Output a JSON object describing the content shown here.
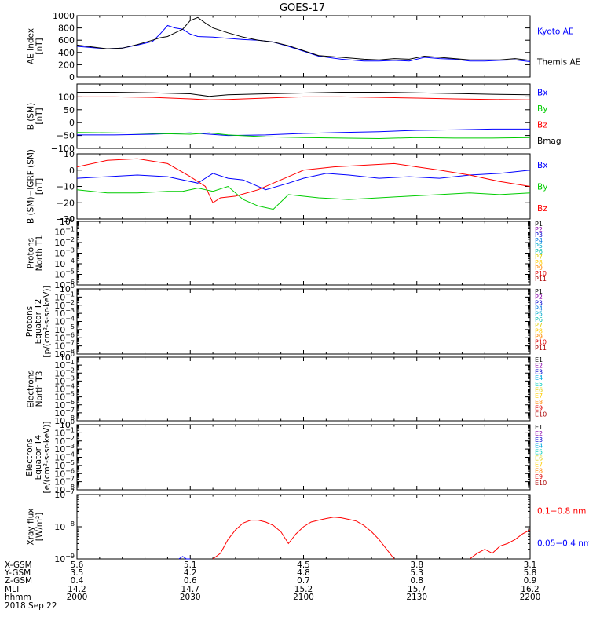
{
  "title": "GOES-17",
  "colors": {
    "black": "#000000",
    "blue": "#0000ff",
    "green": "#00cc00",
    "red": "#ff0000"
  },
  "chart_data": [
    {
      "type": "line",
      "ylabel": [
        "AE Index",
        "[nT]"
      ],
      "ylim": [
        0,
        1000
      ],
      "yticks": [
        0,
        200,
        400,
        600,
        800,
        1000
      ],
      "ytick_labels": [
        "0",
        "200",
        "400",
        "600",
        "800",
        "1000"
      ],
      "series": [
        {
          "name": "Kyoto AE",
          "color": "#0000ff",
          "x": [
            0,
            4,
            8,
            12,
            16,
            20,
            22,
            24,
            26,
            28,
            30,
            32,
            36,
            40,
            44,
            48,
            52,
            56,
            60,
            64,
            70,
            76,
            80,
            84,
            88,
            92,
            96,
            100,
            104,
            108,
            112,
            116,
            120
          ],
          "y": [
            500,
            480,
            460,
            470,
            520,
            580,
            700,
            840,
            800,
            780,
            700,
            660,
            650,
            630,
            610,
            600,
            570,
            500,
            420,
            340,
            290,
            260,
            260,
            270,
            260,
            320,
            300,
            290,
            260,
            260,
            270,
            280,
            250
          ]
        },
        {
          "name": "Themis AE",
          "color": "#000000",
          "x": [
            0,
            4,
            8,
            12,
            16,
            20,
            22,
            24,
            26,
            28,
            30,
            32,
            34,
            36,
            40,
            44,
            48,
            52,
            56,
            60,
            64,
            70,
            76,
            80,
            84,
            88,
            92,
            96,
            100,
            104,
            108,
            112,
            116,
            120
          ],
          "y": [
            520,
            490,
            460,
            470,
            530,
            600,
            640,
            660,
            720,
            780,
            920,
            970,
            880,
            800,
            720,
            650,
            600,
            570,
            510,
            430,
            350,
            320,
            290,
            280,
            300,
            290,
            340,
            320,
            300,
            280,
            280,
            280,
            300,
            270
          ]
        }
      ],
      "legend": [
        "Kyoto AE",
        "Themis AE"
      ]
    },
    {
      "type": "line",
      "ylabel": [
        "B (SM)",
        "[nT]"
      ],
      "ylim": [
        -100,
        150
      ],
      "yticks": [
        -100,
        -50,
        0,
        50,
        100
      ],
      "ytick_labels": [
        "−100",
        "−50",
        "0",
        "50",
        "100"
      ],
      "series": [
        {
          "name": "Bx",
          "color": "#0000ff",
          "x": [
            0,
            10,
            20,
            30,
            40,
            50,
            60,
            70,
            80,
            90,
            100,
            110,
            120
          ],
          "y": [
            -48,
            -48,
            -45,
            -40,
            -50,
            -48,
            -42,
            -38,
            -35,
            -30,
            -28,
            -25,
            -25
          ]
        },
        {
          "name": "By",
          "color": "#00cc00",
          "x": [
            0,
            10,
            20,
            30,
            35,
            40,
            50,
            60,
            70,
            80,
            90,
            100,
            110,
            120
          ],
          "y": [
            -38,
            -40,
            -42,
            -45,
            -40,
            -48,
            -55,
            -58,
            -60,
            -62,
            -58,
            -60,
            -60,
            -58
          ]
        },
        {
          "name": "Bz",
          "color": "#ff0000",
          "x": [
            0,
            10,
            20,
            30,
            35,
            40,
            50,
            60,
            70,
            80,
            90,
            100,
            110,
            120
          ],
          "y": [
            100,
            100,
            98,
            92,
            88,
            90,
            95,
            100,
            100,
            98,
            95,
            92,
            90,
            88
          ]
        },
        {
          "name": "Bmag",
          "color": "#000000",
          "x": [
            0,
            10,
            20,
            30,
            35,
            40,
            50,
            60,
            70,
            80,
            90,
            100,
            110,
            120
          ],
          "y": [
            118,
            118,
            116,
            112,
            102,
            108,
            112,
            115,
            118,
            118,
            116,
            113,
            110,
            108
          ]
        }
      ],
      "legend": [
        "Bx",
        "By",
        "Bz",
        "Bmag"
      ]
    },
    {
      "type": "line",
      "ylabel": [
        "B (SM)−IGRF (SM)",
        "[nT]"
      ],
      "ylim": [
        -30,
        10
      ],
      "yticks": [
        -30,
        -20,
        -10,
        0,
        10
      ],
      "ytick_labels": [
        "−30",
        "−20",
        "−10",
        "0",
        "10"
      ],
      "series": [
        {
          "name": "Bx",
          "color": "#0000ff",
          "x": [
            0,
            8,
            16,
            24,
            32,
            36,
            40,
            44,
            50,
            56,
            60,
            66,
            72,
            80,
            88,
            96,
            104,
            112,
            120
          ],
          "y": [
            -5,
            -4,
            -3,
            -4,
            -8,
            -2,
            -5,
            -6,
            -12,
            -8,
            -5,
            -2,
            -3,
            -5,
            -4,
            -5,
            -3,
            -2,
            0
          ]
        },
        {
          "name": "By",
          "color": "#00cc00",
          "x": [
            0,
            8,
            16,
            24,
            28,
            32,
            36,
            40,
            44,
            48,
            52,
            56,
            64,
            72,
            80,
            88,
            96,
            104,
            112,
            120
          ],
          "y": [
            -12,
            -14,
            -14,
            -13,
            -13,
            -11,
            -13,
            -10,
            -18,
            -22,
            -24,
            -15,
            -17,
            -18,
            -17,
            -16,
            -15,
            -14,
            -15,
            -14
          ]
        },
        {
          "name": "Bz",
          "color": "#ff0000",
          "x": [
            0,
            8,
            16,
            24,
            30,
            34,
            36,
            38,
            42,
            48,
            52,
            56,
            60,
            68,
            76,
            84,
            90,
            96,
            104,
            112,
            120
          ],
          "y": [
            2,
            6,
            7,
            4,
            -4,
            -10,
            -20,
            -17,
            -16,
            -12,
            -8,
            -4,
            0,
            2,
            3,
            4,
            2,
            0,
            -3,
            -7,
            -10
          ]
        }
      ],
      "legend": [
        "Bx",
        "By",
        "Bz"
      ]
    },
    {
      "type": "line",
      "ylabel": [
        "Protons",
        "North T1"
      ],
      "scale": "log",
      "ylim": [
        1e-06,
        1
      ],
      "ytick_labels": [
        "10−6",
        "10−5",
        "10−4",
        "10−3",
        "10−2",
        "10−1",
        "100"
      ],
      "series": [],
      "legend": [
        "P1",
        "P2",
        "P3",
        "P4",
        "P5",
        "P6",
        "P7",
        "P8",
        "P9",
        "P10",
        "P11"
      ],
      "legend_colors": [
        "#000000",
        "#8800aa",
        "#0000cc",
        "#0077dd",
        "#00aacc",
        "#00bbaa",
        "#ddcc00",
        "#ffcc00",
        "#ff8800",
        "#dd0000",
        "#aa0000"
      ]
    },
    {
      "type": "line",
      "ylabel": [
        "Protons",
        "Equator T2",
        "[p/(cm²-s-sr-keV)]"
      ],
      "scale": "log",
      "ylim": [
        1e-08,
        1
      ],
      "ytick_labels": [
        "10−8",
        "10−7",
        "10−6",
        "10−5",
        "10−4",
        "10−3",
        "10−2",
        "10−1",
        "100"
      ],
      "series": [],
      "legend": [
        "P1",
        "P2",
        "P3",
        "P4",
        "P5",
        "P6",
        "P7",
        "P8",
        "P9",
        "P10",
        "P11"
      ],
      "legend_colors": [
        "#000000",
        "#8800aa",
        "#0000cc",
        "#0077dd",
        "#00aacc",
        "#00bbaa",
        "#ddcc00",
        "#ffcc00",
        "#ff8800",
        "#dd0000",
        "#aa0000"
      ]
    },
    {
      "type": "line",
      "ylabel": [
        "Electrons",
        "North T3"
      ],
      "scale": "log",
      "ylim": [
        1e-08,
        1
      ],
      "ytick_labels": [
        "10−8",
        "10−7",
        "10−6",
        "10−5",
        "10−4",
        "10−3",
        "10−2",
        "10−1",
        "100"
      ],
      "series": [],
      "legend": [
        "E1",
        "E2",
        "E3",
        "E4",
        "E5",
        "E6",
        "E7",
        "E8",
        "E9",
        "E10"
      ],
      "legend_colors": [
        "#000000",
        "#8800aa",
        "#0000cc",
        "#00aadd",
        "#00ccbb",
        "#ddcc00",
        "#ffcc00",
        "#ff8800",
        "#dd0000",
        "#aa0000"
      ]
    },
    {
      "type": "line",
      "ylabel": [
        "Electrons",
        "Equator T4",
        "[e/(cm²-s-sr-keV)]"
      ],
      "scale": "log",
      "ylim": [
        1e-08,
        1
      ],
      "ytick_labels": [
        "10−8",
        "10−7",
        "10−6",
        "10−5",
        "10−4",
        "10−3",
        "10−2",
        "10−1",
        "100"
      ],
      "series": [],
      "legend": [
        "E1",
        "E2",
        "E3",
        "E4",
        "E5",
        "E6",
        "E7",
        "E8",
        "E9",
        "E10"
      ],
      "legend_colors": [
        "#000000",
        "#8800aa",
        "#0000cc",
        "#00aadd",
        "#00ccbb",
        "#ddcc00",
        "#ffcc00",
        "#ff8800",
        "#dd0000",
        "#aa0000"
      ]
    },
    {
      "type": "line",
      "ylabel": [
        "Xray flux",
        "[W/m²]"
      ],
      "scale": "log",
      "ylim": [
        1e-09,
        1e-07
      ],
      "ytick_labels": [
        "10−9",
        "10−8",
        "10−7"
      ],
      "series": [
        {
          "name": "0.1−0.8 nm",
          "color": "#ff0000",
          "x": [
            36,
            38,
            40,
            42,
            44,
            46,
            48,
            50,
            52,
            54,
            56,
            58,
            60,
            62,
            64,
            66,
            68,
            70,
            72,
            74,
            76,
            78,
            80,
            82,
            84,
            86,
            88,
            90,
            92,
            94,
            96,
            98,
            100,
            102,
            104,
            106,
            108,
            110,
            112,
            114,
            116,
            118,
            120
          ],
          "y": [
            1e-09,
            1.5e-09,
            4e-09,
            8e-09,
            1.3e-08,
            1.6e-08,
            1.6e-08,
            1.4e-08,
            1.1e-08,
            7e-09,
            3e-09,
            6e-09,
            1e-08,
            1.4e-08,
            1.6e-08,
            1.8e-08,
            2e-08,
            1.9e-08,
            1.7e-08,
            1.5e-08,
            1.1e-08,
            7e-09,
            4e-09,
            2e-09,
            1e-09,
            null,
            null,
            null,
            null,
            null,
            null,
            null,
            null,
            null,
            1e-09,
            1.5e-09,
            2e-09,
            1.5e-09,
            2.5e-09,
            3e-09,
            4e-09,
            6e-09,
            8e-09
          ]
        },
        {
          "name": "0.05−0.4 nm",
          "color": "#0000ff",
          "x": [
            27,
            28,
            29,
            30
          ],
          "y": [
            1e-09,
            1.2e-09,
            1e-09,
            1e-09
          ]
        }
      ],
      "legend": [
        "0.1−0.8 nm",
        "0.05−0.4 nm"
      ]
    }
  ],
  "x_axis": {
    "xlim": [
      0,
      120
    ],
    "ticks": [
      0,
      30,
      60,
      90,
      120
    ],
    "rows": [
      {
        "label": "X-GSM",
        "values": [
          "5.6",
          "5.1",
          "4.5",
          "3.8",
          "3.1"
        ]
      },
      {
        "label": "Y-GSM",
        "values": [
          "3.5",
          "4.2",
          "4.8",
          "5.3",
          "5.8"
        ]
      },
      {
        "label": "Z-GSM",
        "values": [
          "0.4",
          "0.6",
          "0.7",
          "0.8",
          "0.9"
        ]
      },
      {
        "label": "MLT",
        "values": [
          "14.2",
          "14.7",
          "15.2",
          "15.7",
          "16.2"
        ]
      },
      {
        "label": "hhmm",
        "values": [
          "2000",
          "2030",
          "2100",
          "2130",
          "2200"
        ]
      }
    ],
    "date": "2018 Sep 22"
  }
}
